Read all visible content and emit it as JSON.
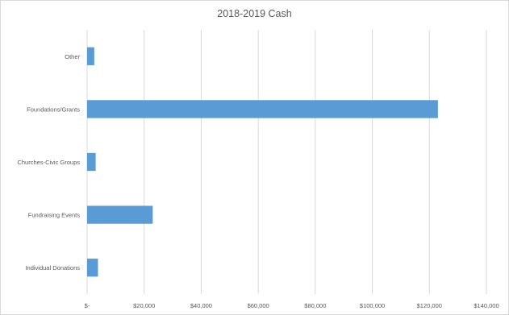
{
  "chart_data": {
    "type": "bar",
    "orientation": "horizontal",
    "title": "2018-2019 Cash",
    "xlabel": "",
    "ylabel": "",
    "categories": [
      "Other",
      "Foundations/Grants",
      "Churches-Civic Groups",
      "Fundraising Events",
      "Individual Donations"
    ],
    "values": [
      2500,
      123000,
      3000,
      23000,
      3800
    ],
    "xlim": [
      0,
      140000
    ],
    "x_ticks": [
      0,
      20000,
      40000,
      60000,
      80000,
      100000,
      120000,
      140000
    ],
    "x_tick_labels": [
      "$-",
      "$20,000",
      "$40,000",
      "$60,000",
      "$80,000",
      "$100,000",
      "$120,000",
      "$140,000"
    ],
    "grid": "vertical",
    "legend": "none",
    "bar_color": "#5b9bd5",
    "gridline_color": "#d9d9d9"
  }
}
